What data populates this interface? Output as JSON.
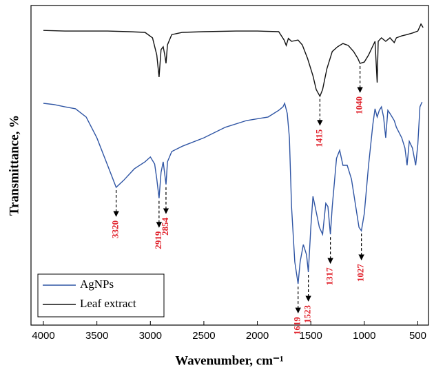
{
  "chart_data": {
    "type": "line",
    "x_label": "Wavenumber, cm⁻¹",
    "y_label": "Transmittance, %",
    "xlim": [
      4116,
      400
    ],
    "ylim": [
      0,
      100
    ],
    "xticks": [
      4000,
      3500,
      3000,
      2500,
      2000,
      1500,
      1000,
      500
    ],
    "series": [
      {
        "name": "AgNPs",
        "color": "#2f55a4",
        "x": [
          4000,
          3900,
          3800,
          3700,
          3600,
          3500,
          3400,
          3320,
          3250,
          3150,
          3050,
          3000,
          2960,
          2940,
          2919,
          2900,
          2880,
          2854,
          2840,
          2800,
          2700,
          2500,
          2300,
          2100,
          1900,
          1800,
          1760,
          1745,
          1720,
          1700,
          1680,
          1650,
          1619,
          1600,
          1570,
          1540,
          1523,
          1500,
          1480,
          1460,
          1420,
          1390,
          1360,
          1340,
          1317,
          1300,
          1260,
          1230,
          1200,
          1160,
          1120,
          1080,
          1050,
          1027,
          1000,
          960,
          920,
          900,
          880,
          860,
          840,
          820,
          800,
          780,
          760,
          720,
          700,
          650,
          620,
          600,
          580,
          550,
          520,
          500,
          480,
          460
        ],
        "values": [
          69.4,
          69.0,
          68.3,
          67.7,
          65.1,
          58.6,
          50.0,
          43.1,
          45.3,
          48.9,
          51.1,
          52.6,
          50.4,
          45.7,
          39.7,
          47.8,
          51.1,
          44.0,
          51.1,
          54.3,
          56.0,
          58.6,
          61.9,
          64.0,
          65.1,
          67.2,
          68.3,
          69.4,
          66.2,
          58.6,
          37.1,
          19.8,
          12.9,
          19.8,
          25.2,
          22.0,
          16.6,
          30.6,
          40.3,
          37.1,
          30.6,
          28.4,
          38.1,
          37.1,
          28.4,
          37.1,
          52.2,
          54.7,
          50.0,
          50.0,
          45.7,
          37.1,
          30.6,
          29.5,
          34.9,
          50.0,
          62.9,
          67.7,
          65.1,
          67.2,
          68.3,
          65.1,
          58.6,
          67.2,
          66.2,
          64.0,
          61.9,
          58.6,
          55.4,
          50.0,
          57.5,
          55.4,
          50.0,
          56.5,
          68.3,
          69.8
        ],
        "peaks": [
          3320,
          2919,
          2854,
          1619,
          1523,
          1317,
          1027
        ]
      },
      {
        "name": "Leaf extract",
        "color": "#111111",
        "x": [
          4000,
          3800,
          3600,
          3400,
          3200,
          3050,
          2980,
          2940,
          2919,
          2900,
          2880,
          2865,
          2854,
          2840,
          2800,
          2700,
          2500,
          2200,
          2000,
          1800,
          1750,
          1730,
          1710,
          1680,
          1620,
          1580,
          1530,
          1480,
          1450,
          1415,
          1390,
          1350,
          1300,
          1250,
          1200,
          1150,
          1100,
          1060,
          1040,
          1000,
          960,
          900,
          880,
          870,
          840,
          800,
          760,
          720,
          700,
          650,
          600,
          550,
          500,
          470,
          450
        ],
        "values": [
          92.2,
          92.0,
          92.0,
          92.0,
          91.8,
          91.6,
          89.9,
          84.5,
          77.6,
          86.2,
          87.1,
          84.5,
          81.9,
          87.7,
          90.9,
          91.6,
          91.8,
          92.0,
          92.0,
          91.8,
          89.2,
          87.5,
          89.7,
          88.8,
          89.2,
          87.7,
          83.4,
          78.0,
          73.7,
          71.6,
          73.7,
          80.2,
          85.6,
          87.1,
          88.1,
          87.5,
          85.6,
          83.4,
          81.9,
          82.3,
          84.5,
          88.8,
          75.9,
          88.8,
          89.9,
          88.8,
          89.9,
          88.4,
          89.9,
          90.5,
          90.9,
          91.4,
          92.0,
          94.2,
          93.1
        ],
        "peaks": [
          1415,
          1040
        ]
      }
    ]
  }
}
